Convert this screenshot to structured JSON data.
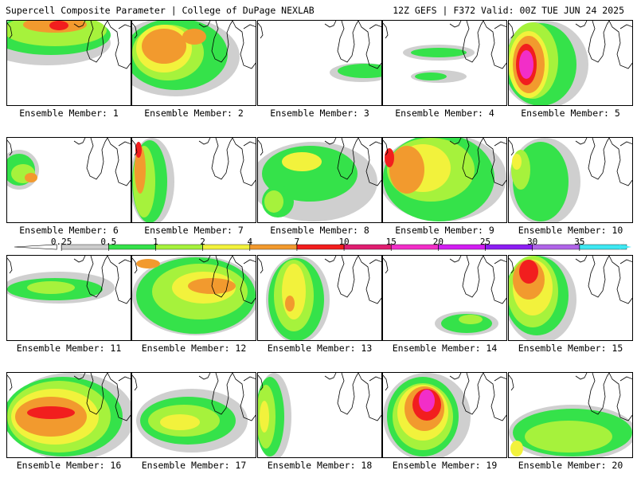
{
  "header": {
    "left": "Supercell Composite Parameter | College of DuPage NEXLAB",
    "right": "12Z GEFS | F372 Valid: 00Z TUE JUN 24 2025"
  },
  "member_prefix": "Ensemble Member:",
  "members": [
    "1",
    "2",
    "3",
    "4",
    "5",
    "6",
    "7",
    "8",
    "9",
    "10",
    "11",
    "12",
    "13",
    "14",
    "15",
    "16",
    "17",
    "18",
    "19",
    "20"
  ],
  "colorbar": {
    "ticks": [
      "0.25",
      "0.5",
      "1",
      "2",
      "4",
      "7",
      "10",
      "15",
      "20",
      "25",
      "30",
      "35"
    ],
    "colors": [
      "#cccccc",
      "#35e24a",
      "#a6f23c",
      "#f2f23c",
      "#f29a2e",
      "#f21e1e",
      "#e01e70",
      "#f22ec8",
      "#d21ef2",
      "#8c1ef2",
      "#b064e8",
      "#3ee8f2"
    ]
  },
  "fill_colors": {
    "gray": "#cfcfcf",
    "green": "#35e24a",
    "lightgreen": "#a6f23c",
    "yellow": "#f2f23c",
    "orange": "#f29a2e",
    "red": "#f21e1e",
    "magenta": "#f22ec8"
  },
  "panel_blobs": [
    [
      [
        "gray",
        50,
        28,
        80,
        28
      ],
      [
        "green",
        55,
        18,
        75,
        25
      ],
      [
        "lightgreen",
        60,
        12,
        65,
        20
      ],
      [
        "orange",
        60,
        5,
        40,
        10
      ],
      [
        "red",
        65,
        6,
        12,
        6
      ]
    ],
    [
      [
        "gray",
        55,
        45,
        80,
        50
      ],
      [
        "green",
        55,
        42,
        65,
        45
      ],
      [
        "lightgreen",
        45,
        40,
        45,
        35
      ],
      [
        "yellow",
        40,
        35,
        35,
        30
      ],
      [
        "orange",
        40,
        32,
        28,
        22
      ],
      [
        "orange",
        78,
        20,
        15,
        10
      ]
    ],
    [
      [
        "gray",
        130,
        65,
        40,
        12
      ],
      [
        "green",
        135,
        63,
        35,
        9
      ]
    ],
    [
      [
        "gray",
        70,
        40,
        45,
        10
      ],
      [
        "green",
        70,
        40,
        35,
        6
      ],
      [
        "gray",
        70,
        70,
        35,
        8
      ],
      [
        "green",
        60,
        70,
        20,
        5
      ]
    ],
    [
      [
        "gray",
        45,
        55,
        55,
        55
      ],
      [
        "green",
        40,
        55,
        45,
        52
      ],
      [
        "lightgreen",
        30,
        50,
        32,
        48
      ],
      [
        "yellow",
        25,
        55,
        25,
        42
      ],
      [
        "orange",
        25,
        55,
        20,
        36
      ],
      [
        "red",
        22,
        55,
        13,
        26
      ],
      [
        "magenta",
        22,
        55,
        9,
        18
      ]
    ],
    [
      [
        "gray",
        15,
        40,
        25,
        25
      ],
      [
        "green",
        15,
        40,
        20,
        20
      ],
      [
        "lightgreen",
        20,
        45,
        15,
        12
      ],
      [
        "orange",
        30,
        50,
        8,
        6
      ]
    ],
    [
      [
        "gray",
        25,
        55,
        28,
        55
      ],
      [
        "green",
        22,
        55,
        22,
        52
      ],
      [
        "lightgreen",
        15,
        55,
        14,
        45
      ],
      [
        "orange",
        10,
        40,
        7,
        30
      ],
      [
        "red",
        8,
        15,
        4,
        10
      ]
    ],
    [
      [
        "gray",
        70,
        55,
        80,
        50
      ],
      [
        "green",
        65,
        45,
        60,
        35
      ],
      [
        "green",
        25,
        80,
        20,
        20
      ],
      [
        "lightgreen",
        20,
        80,
        12,
        14
      ],
      [
        "yellow",
        55,
        30,
        25,
        12
      ]
    ],
    [
      [
        "gray",
        75,
        50,
        80,
        55
      ],
      [
        "green",
        70,
        50,
        70,
        55
      ],
      [
        "lightgreen",
        60,
        40,
        55,
        40
      ],
      [
        "yellow",
        50,
        38,
        35,
        30
      ],
      [
        "orange",
        30,
        40,
        22,
        30
      ],
      [
        "red",
        8,
        25,
        6,
        12
      ]
    ],
    [
      [
        "gray",
        45,
        55,
        45,
        55
      ],
      [
        "green",
        40,
        55,
        35,
        50
      ],
      [
        "lightgreen",
        15,
        40,
        12,
        25
      ],
      [
        "yellow",
        10,
        30,
        6,
        10
      ]
    ],
    [
      [
        "gray",
        65,
        40,
        70,
        20
      ],
      [
        "green",
        60,
        42,
        60,
        14
      ],
      [
        "lightgreen",
        55,
        40,
        30,
        8
      ]
    ],
    [
      [
        "gray",
        80,
        50,
        80,
        50
      ],
      [
        "green",
        80,
        50,
        75,
        48
      ],
      [
        "lightgreen",
        85,
        45,
        60,
        35
      ],
      [
        "yellow",
        90,
        40,
        40,
        20
      ],
      [
        "orange",
        100,
        38,
        30,
        10
      ],
      [
        "orange",
        20,
        10,
        15,
        6
      ]
    ],
    [
      [
        "gray",
        50,
        55,
        40,
        55
      ],
      [
        "green",
        48,
        55,
        35,
        52
      ],
      [
        "lightgreen",
        45,
        50,
        25,
        45
      ],
      [
        "yellow",
        45,
        45,
        15,
        35
      ],
      [
        "orange",
        40,
        60,
        6,
        10
      ]
    ],
    [
      [
        "gray",
        105,
        85,
        40,
        15
      ],
      [
        "green",
        105,
        85,
        32,
        12
      ],
      [
        "lightgreen",
        110,
        80,
        15,
        6
      ]
    ],
    [
      [
        "gray",
        40,
        55,
        45,
        55
      ],
      [
        "green",
        35,
        50,
        40,
        50
      ],
      [
        "lightgreen",
        30,
        45,
        32,
        45
      ],
      [
        "yellow",
        30,
        40,
        25,
        35
      ],
      [
        "orange",
        25,
        30,
        20,
        25
      ],
      [
        "red",
        25,
        20,
        12,
        15
      ]
    ],
    [
      [
        "gray",
        80,
        55,
        80,
        55
      ],
      [
        "green",
        70,
        55,
        75,
        50
      ],
      [
        "lightgreen",
        65,
        55,
        65,
        45
      ],
      [
        "yellow",
        60,
        55,
        55,
        35
      ],
      [
        "orange",
        55,
        55,
        45,
        25
      ],
      [
        "red",
        55,
        50,
        30,
        8
      ]
    ],
    [
      [
        "gray",
        75,
        60,
        70,
        40
      ],
      [
        "green",
        70,
        60,
        60,
        30
      ],
      [
        "lightgreen",
        65,
        60,
        45,
        20
      ],
      [
        "yellow",
        60,
        62,
        25,
        10
      ]
    ],
    [
      [
        "gray",
        20,
        55,
        22,
        55
      ],
      [
        "green",
        15,
        55,
        18,
        50
      ],
      [
        "lightgreen",
        10,
        55,
        12,
        40
      ],
      [
        "yellow",
        8,
        55,
        6,
        20
      ]
    ],
    [
      [
        "gray",
        55,
        55,
        55,
        55
      ],
      [
        "green",
        50,
        55,
        45,
        50
      ],
      [
        "lightgreen",
        50,
        55,
        38,
        42
      ],
      [
        "yellow",
        50,
        50,
        32,
        35
      ],
      [
        "orange",
        52,
        45,
        25,
        28
      ],
      [
        "red",
        55,
        40,
        18,
        20
      ],
      [
        "magenta",
        55,
        35,
        10,
        14
      ]
    ],
    [
      [
        "gray",
        80,
        75,
        80,
        35
      ],
      [
        "green",
        80,
        75,
        75,
        30
      ],
      [
        "lightgreen",
        75,
        80,
        55,
        20
      ],
      [
        "yellow",
        10,
        95,
        8,
        10
      ]
    ]
  ]
}
